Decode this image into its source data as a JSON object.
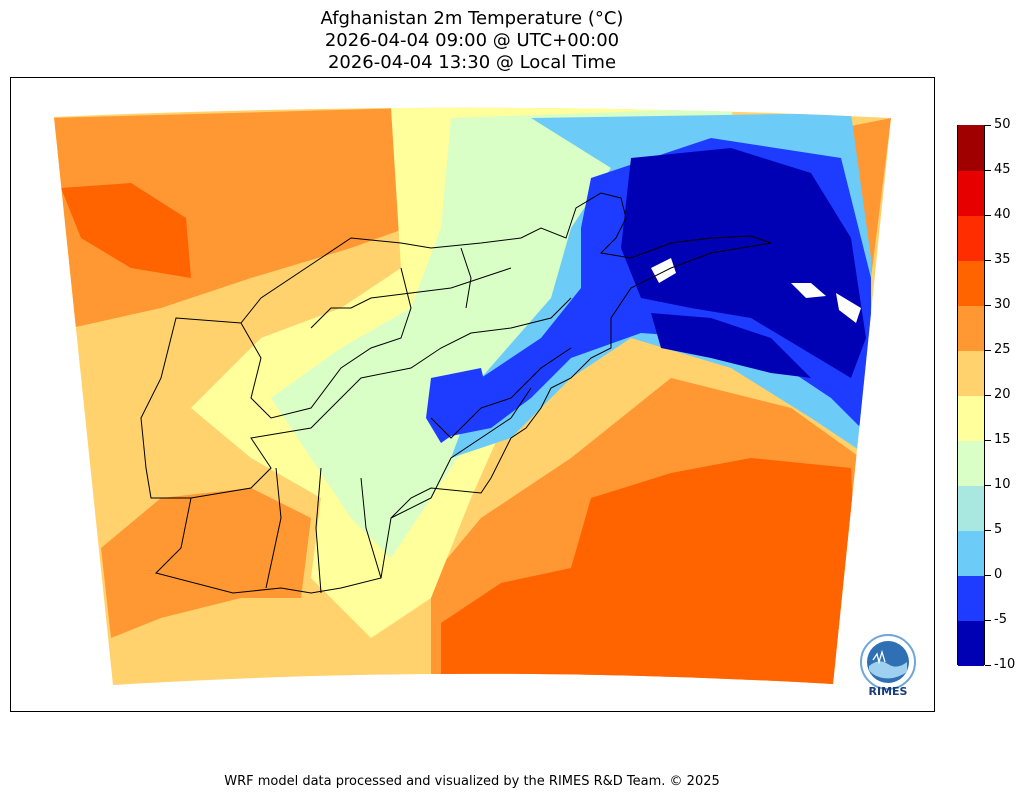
{
  "title": {
    "line1": "Afghanistan 2m Temperature (°C)",
    "line2": "2026-04-04 09:00 @ UTC+00:00",
    "line3": "2026-04-04 13:30 @ Local Time"
  },
  "colorbar": {
    "unit": "°C",
    "levels": [
      -10,
      -5,
      0,
      5,
      10,
      15,
      20,
      25,
      30,
      35,
      40,
      45,
      50
    ],
    "tick_labels": [
      "50",
      "45",
      "40",
      "35",
      "30",
      "25",
      "20",
      "15",
      "10",
      "5",
      "0",
      "-5",
      "-10"
    ],
    "colors": [
      "#0000b4",
      "#1e3cff",
      "#6ccbf7",
      "#a9e8e0",
      "#d9ffc6",
      "#ffff9c",
      "#ffd26e",
      "#ff9733",
      "#ff6400",
      "#ff2d00",
      "#e60000",
      "#a00000"
    ]
  },
  "map": {
    "country": "Afghanistan",
    "background_color": "#ffd26e",
    "regions": [
      {
        "name": "northwest-warm",
        "color": "#ff9733"
      },
      {
        "name": "west-hot",
        "color": "#ff6400"
      },
      {
        "name": "southeast-hot",
        "color": "#ff6400"
      },
      {
        "name": "mild-belt",
        "color": "#ffff9c"
      },
      {
        "name": "cool-highlands",
        "color": "#d9ffc6"
      },
      {
        "name": "cold-mountains",
        "color": "#1e3cff"
      },
      {
        "name": "very-cold-peaks",
        "color": "#0000b4"
      }
    ]
  },
  "logo": {
    "text": "RIMES"
  },
  "footer": {
    "credit": "WRF model data processed and visualized by the RIMES R&D Team. © 2025"
  }
}
